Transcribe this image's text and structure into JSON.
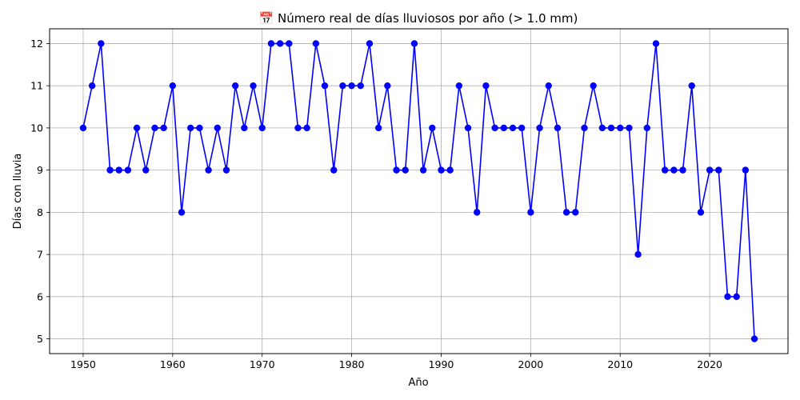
{
  "chart_data": {
    "type": "line",
    "title": "📅 Número real de días lluviosos por año (> 1.0 mm)",
    "xlabel": "Año",
    "ylabel": "Días con lluvia",
    "xlim": [
      1946.25,
      2028.75
    ],
    "ylim": [
      4.65,
      12.35
    ],
    "xticks": [
      1950,
      1960,
      1970,
      1980,
      1990,
      2000,
      2010,
      2020
    ],
    "yticks": [
      5,
      6,
      7,
      8,
      9,
      10,
      11,
      12
    ],
    "grid": true,
    "series": [
      {
        "color": "#0000ff",
        "marker": "circle",
        "x": [
          1950,
          1951,
          1952,
          1953,
          1954,
          1955,
          1956,
          1957,
          1958,
          1959,
          1960,
          1961,
          1962,
          1963,
          1964,
          1965,
          1966,
          1967,
          1968,
          1969,
          1970,
          1971,
          1972,
          1973,
          1974,
          1975,
          1976,
          1977,
          1978,
          1979,
          1980,
          1981,
          1982,
          1983,
          1984,
          1985,
          1986,
          1987,
          1988,
          1989,
          1990,
          1991,
          1992,
          1993,
          1994,
          1995,
          1996,
          1997,
          1998,
          1999,
          2000,
          2001,
          2002,
          2003,
          2004,
          2005,
          2006,
          2007,
          2008,
          2009,
          2010,
          2011,
          2012,
          2013,
          2014,
          2015,
          2016,
          2017,
          2018,
          2019,
          2020,
          2021,
          2022,
          2023,
          2024,
          2025
        ],
        "values": [
          10,
          11,
          12,
          9,
          9,
          9,
          10,
          9,
          10,
          10,
          11,
          8,
          10,
          10,
          9,
          10,
          9,
          11,
          10,
          11,
          10,
          12,
          12,
          12,
          10,
          10,
          12,
          11,
          9,
          11,
          11,
          11,
          12,
          10,
          11,
          9,
          9,
          12,
          9,
          10,
          9,
          9,
          11,
          10,
          8,
          11,
          10,
          10,
          10,
          10,
          8,
          10,
          11,
          10,
          8,
          8,
          10,
          11,
          10,
          10,
          10,
          10,
          7,
          10,
          12,
          9,
          9,
          9,
          11,
          8,
          9,
          9,
          6,
          6,
          9,
          5
        ]
      }
    ]
  }
}
